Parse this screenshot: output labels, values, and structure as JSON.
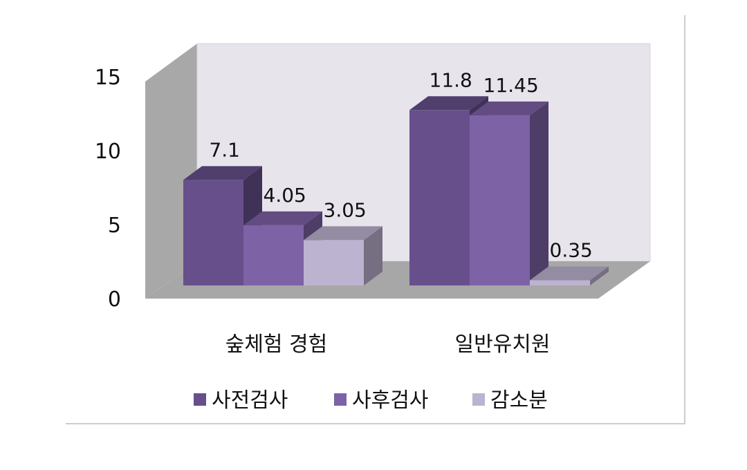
{
  "chart_data": {
    "type": "bar",
    "style": "3d-clustered-column",
    "title": "",
    "xlabel": "",
    "ylabel": "",
    "categories": [
      "숲체험 경험",
      "일반유치원"
    ],
    "series": [
      {
        "name": "사전검사",
        "values": [
          7.1,
          11.8
        ],
        "color": "#674f8c"
      },
      {
        "name": "사후검사",
        "values": [
          4.05,
          11.45
        ],
        "color": "#7e62a6"
      },
      {
        "name": "감소분",
        "values": [
          3.05,
          0.35
        ],
        "color": "#bcb3d0"
      }
    ],
    "data_labels": [
      [
        "7.1",
        "11.8"
      ],
      [
        "4.05",
        "11.45"
      ],
      [
        "3.05",
        "0.35"
      ]
    ],
    "yticks": [
      0,
      5,
      10,
      15
    ],
    "ytick_labels": [
      "0",
      "5",
      "10",
      "15"
    ],
    "ylim": [
      0,
      15
    ],
    "grid": false,
    "legend_position": "bottom",
    "wall_color": "#e7e4ec",
    "side_wall_color": "#a8a8a8",
    "floor_color": "#a7a7a7"
  }
}
